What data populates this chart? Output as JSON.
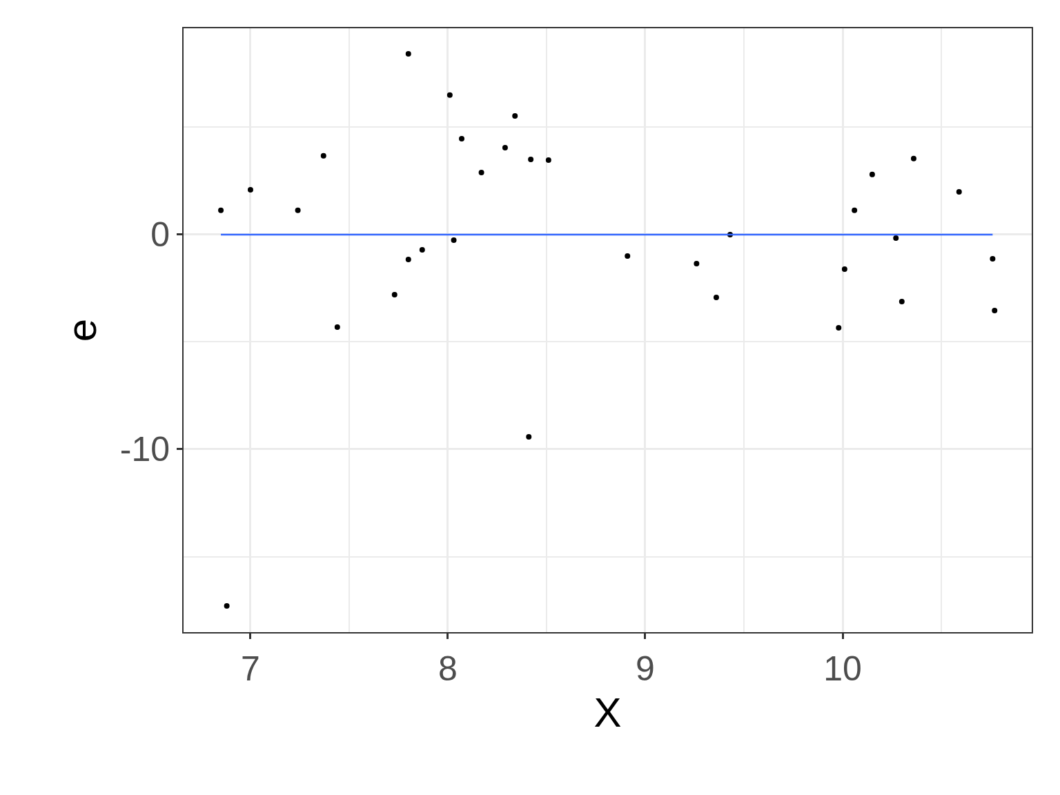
{
  "chart_data": {
    "type": "scatter",
    "xlabel": "X",
    "ylabel": "e",
    "xlim": [
      6.661,
      10.958
    ],
    "ylim": [
      -18.52,
      9.61
    ],
    "xticks": [
      7,
      8,
      9,
      10
    ],
    "yticks": [
      -10,
      0
    ],
    "grid": true,
    "series": [
      {
        "color": "#000000",
        "marker": "circle",
        "x": [
          6.85,
          6.88,
          7.0,
          7.24,
          7.37,
          7.44,
          7.73,
          7.8,
          7.8,
          7.87,
          8.01,
          8.03,
          8.07,
          8.17,
          8.29,
          8.34,
          8.41,
          8.42,
          8.51,
          8.91,
          9.26,
          9.36,
          9.43,
          9.98,
          10.01,
          10.06,
          10.15,
          10.27,
          10.3,
          10.36,
          10.59,
          10.76,
          10.77
        ],
        "values": [
          1.13,
          -17.3,
          2.09,
          1.13,
          3.67,
          -4.31,
          -2.8,
          8.42,
          -1.16,
          -0.71,
          6.5,
          -0.26,
          4.47,
          2.89,
          4.05,
          5.53,
          -9.42,
          3.5,
          3.47,
          -1.0,
          -1.35,
          -2.93,
          0.0,
          -4.34,
          -1.61,
          1.13,
          2.8,
          -0.16,
          -3.12,
          3.54,
          1.99,
          -1.13,
          -3.54
        ]
      },
      {
        "type": "line",
        "color": "#3366ff",
        "x": [
          6.85,
          10.76
        ],
        "values": [
          0,
          0
        ]
      }
    ]
  }
}
